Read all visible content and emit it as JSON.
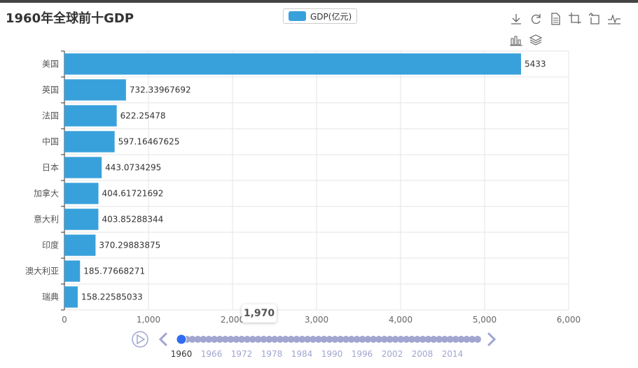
{
  "title": "1960年全球前十GDP",
  "legend": {
    "label": "GDP(亿元)",
    "color": "#38a1db"
  },
  "toolbox": {
    "icons": [
      "download-icon",
      "refresh-icon",
      "data-view-icon",
      "zoom-icon",
      "zoom-reset-icon",
      "line-chart-icon",
      "bar-chart-icon",
      "stack-icon"
    ]
  },
  "tooltip": "1,970",
  "chart_data": {
    "type": "bar",
    "orientation": "horizontal",
    "categories": [
      "美国",
      "英国",
      "法国",
      "中国",
      "日本",
      "加拿大",
      "意大利",
      "印度",
      "澳大利亚",
      "瑞典"
    ],
    "values": [
      5433,
      732.33967692,
      622.25478,
      597.16467625,
      443.0734295,
      404.61721692,
      403.85288344,
      370.29883875,
      185.77668271,
      158.22585033
    ],
    "value_labels": [
      "5433",
      "732.33967692",
      "622.25478",
      "597.16467625",
      "443.0734295",
      "404.61721692",
      "403.85288344",
      "370.29883875",
      "185.77668271",
      "158.22585033"
    ],
    "xlim": [
      0,
      6000
    ],
    "x_ticks": [
      0,
      1000,
      2000,
      3000,
      4000,
      5000,
      6000
    ],
    "x_tick_labels": [
      "0",
      "1,000",
      "2,000",
      "3,000",
      "4,000",
      "5,000",
      "6,000"
    ],
    "grid": true,
    "color": "#38a1db"
  },
  "timeline": {
    "labels": [
      "1960",
      "1966",
      "1972",
      "1978",
      "1984",
      "1990",
      "1996",
      "2002",
      "2008",
      "2014"
    ],
    "current": "1960",
    "color": "#a0a6cf",
    "active_color": "#316bf3"
  }
}
